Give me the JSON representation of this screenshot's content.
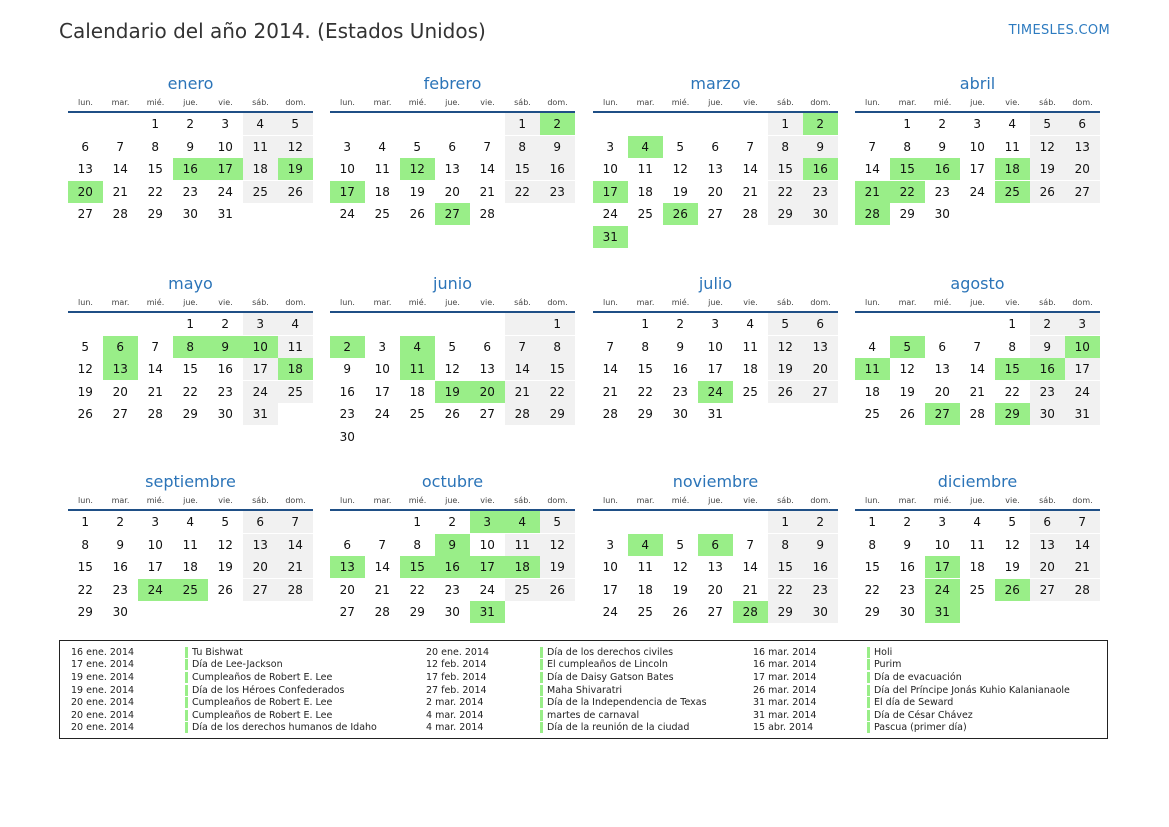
{
  "title": "Calendario del año 2014. (Estados Unidos)",
  "brand": "TIMESLES.COM",
  "weekdays": [
    "lun.",
    "mar.",
    "mié.",
    "jue.",
    "vie.",
    "sáb.",
    "dom."
  ],
  "months": [
    {
      "name": "enero",
      "offset": 2,
      "days": 31,
      "holidays": [
        16,
        17,
        19,
        20
      ]
    },
    {
      "name": "febrero",
      "offset": 5,
      "days": 28,
      "holidays": [
        2,
        12,
        17,
        27
      ]
    },
    {
      "name": "marzo",
      "offset": 5,
      "days": 31,
      "holidays": [
        2,
        4,
        16,
        17,
        26,
        31
      ]
    },
    {
      "name": "abril",
      "offset": 1,
      "days": 30,
      "holidays": [
        15,
        16,
        18,
        21,
        22,
        25,
        28
      ]
    },
    {
      "name": "mayo",
      "offset": 3,
      "days": 31,
      "holidays": [
        6,
        8,
        9,
        10,
        13,
        18
      ]
    },
    {
      "name": "junio",
      "offset": 6,
      "days": 30,
      "holidays": [
        2,
        4,
        11,
        19,
        20
      ]
    },
    {
      "name": "julio",
      "offset": 1,
      "days": 31,
      "holidays": [
        24
      ]
    },
    {
      "name": "agosto",
      "offset": 4,
      "days": 31,
      "holidays": [
        5,
        10,
        11,
        15,
        16,
        27,
        29
      ]
    },
    {
      "name": "septiembre",
      "offset": 0,
      "days": 30,
      "holidays": [
        24,
        25
      ]
    },
    {
      "name": "octubre",
      "offset": 2,
      "days": 31,
      "holidays": [
        3,
        4,
        9,
        13,
        15,
        16,
        17,
        18,
        31
      ]
    },
    {
      "name": "noviembre",
      "offset": 5,
      "days": 30,
      "holidays": [
        4,
        6,
        28
      ]
    },
    {
      "name": "diciembre",
      "offset": 0,
      "days": 31,
      "holidays": [
        17,
        24,
        26,
        31
      ]
    }
  ],
  "legend": [
    [
      {
        "date": "16 ene. 2014",
        "name": "Tu Bishwat"
      },
      {
        "date": "17 ene. 2014",
        "name": "Día de Lee-Jackson"
      },
      {
        "date": "19 ene. 2014",
        "name": "Cumpleaños de Robert E. Lee"
      },
      {
        "date": "19 ene. 2014",
        "name": "Día de los Héroes Confederados"
      },
      {
        "date": "20 ene. 2014",
        "name": "Cumpleaños de Robert E. Lee"
      },
      {
        "date": "20 ene. 2014",
        "name": "Cumpleaños de Robert E. Lee"
      },
      {
        "date": "20 ene. 2014",
        "name": "Día de los derechos humanos de Idaho"
      }
    ],
    [
      {
        "date": "20 ene. 2014",
        "name": "Día de los derechos civiles"
      },
      {
        "date": "12 feb. 2014",
        "name": "El cumpleaños de Lincoln"
      },
      {
        "date": "17 feb. 2014",
        "name": "Día de Daisy Gatson Bates"
      },
      {
        "date": "27 feb. 2014",
        "name": "Maha Shivaratri"
      },
      {
        "date": "2 mar. 2014",
        "name": "Día de la Independencia de Texas"
      },
      {
        "date": "4 mar. 2014",
        "name": "martes de carnaval"
      },
      {
        "date": "4 mar. 2014",
        "name": "Día de la reunión de la ciudad"
      }
    ],
    [
      {
        "date": "16 mar. 2014",
        "name": "Holi"
      },
      {
        "date": "16 mar. 2014",
        "name": "Purim"
      },
      {
        "date": "17 mar. 2014",
        "name": "Día de evacuación"
      },
      {
        "date": "26 mar. 2014",
        "name": "Día del Príncipe Jonás Kuhio Kalanianaole"
      },
      {
        "date": "31 mar. 2014",
        "name": "El día de Seward"
      },
      {
        "date": "31 mar. 2014",
        "name": "Día de César Chávez"
      },
      {
        "date": "15 abr. 2014",
        "name": "Pascua (primer día)"
      }
    ]
  ]
}
